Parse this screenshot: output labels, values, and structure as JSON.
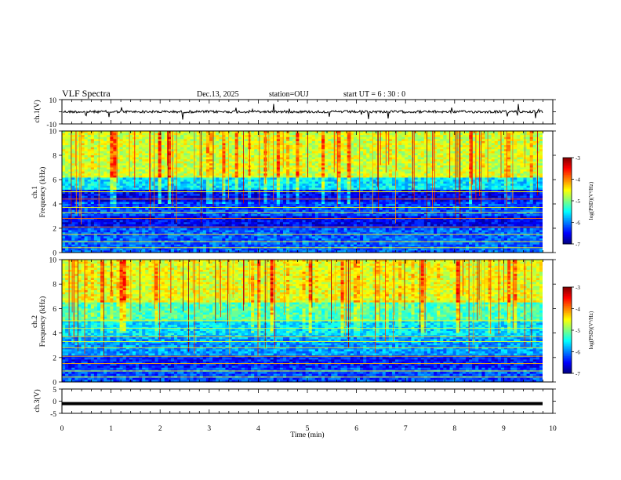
{
  "header": {
    "title": "VLF Spectra",
    "date": "Dec.13, 2025",
    "station": "station=OUJ",
    "start_ut": "start  UT  =   6  : 30 : 0"
  },
  "chart_data": [
    {
      "type": "line",
      "panel": "waveform-ch1",
      "ylabel": "ch.1(V)",
      "ylim": [
        -10,
        10
      ],
      "yticks": [
        "10",
        "-10"
      ],
      "xlim": [
        0,
        10
      ],
      "baseline_value": 0,
      "series": [],
      "note_values": "noisy trace near 0 V with sporadic spikes"
    },
    {
      "type": "heatmap",
      "panel": "spectrogram-ch1",
      "ylabel": "ch.1\nFrequency (kHz)",
      "ylabel_line1": "ch.1",
      "ylabel_line2": "Frequency  (kHz)",
      "ylim": [
        0,
        10
      ],
      "yticks": [
        "0",
        "2",
        "4",
        "6",
        "8",
        "10"
      ],
      "xlim": [
        0,
        10
      ],
      "colorbar": {
        "label": "log(PSD)(V²/Hz)",
        "range": [
          -7,
          -3
        ],
        "ticks": [
          "-3",
          "-4",
          "-5",
          "-6",
          "-7"
        ],
        "colormap": "jet"
      }
    },
    {
      "type": "heatmap",
      "panel": "spectrogram-ch2",
      "ylabel_line1": "ch.2",
      "ylabel_line2": "Frequency  (kHz)",
      "ylim": [
        0,
        10
      ],
      "yticks": [
        "0",
        "2",
        "4",
        "6",
        "8",
        "10"
      ],
      "xlim": [
        0,
        10
      ],
      "colorbar": {
        "label": "log(PSD)(V²/Hz)",
        "range": [
          -7,
          -3
        ],
        "ticks": [
          "-3",
          "-4",
          "-5",
          "-6",
          "-7"
        ],
        "colormap": "jet"
      }
    },
    {
      "type": "line",
      "panel": "waveform-ch3",
      "ylabel": "ch.3(V)",
      "ylim": [
        -5,
        5
      ],
      "yticks": [
        "5",
        "0",
        "-5"
      ],
      "xlim": [
        0,
        10
      ],
      "level_value": -1
    }
  ],
  "xaxis": {
    "label": "Time  (min)",
    "ticks": [
      "0",
      "1",
      "2",
      "3",
      "4",
      "5",
      "6",
      "7",
      "8",
      "9",
      "10"
    ]
  }
}
